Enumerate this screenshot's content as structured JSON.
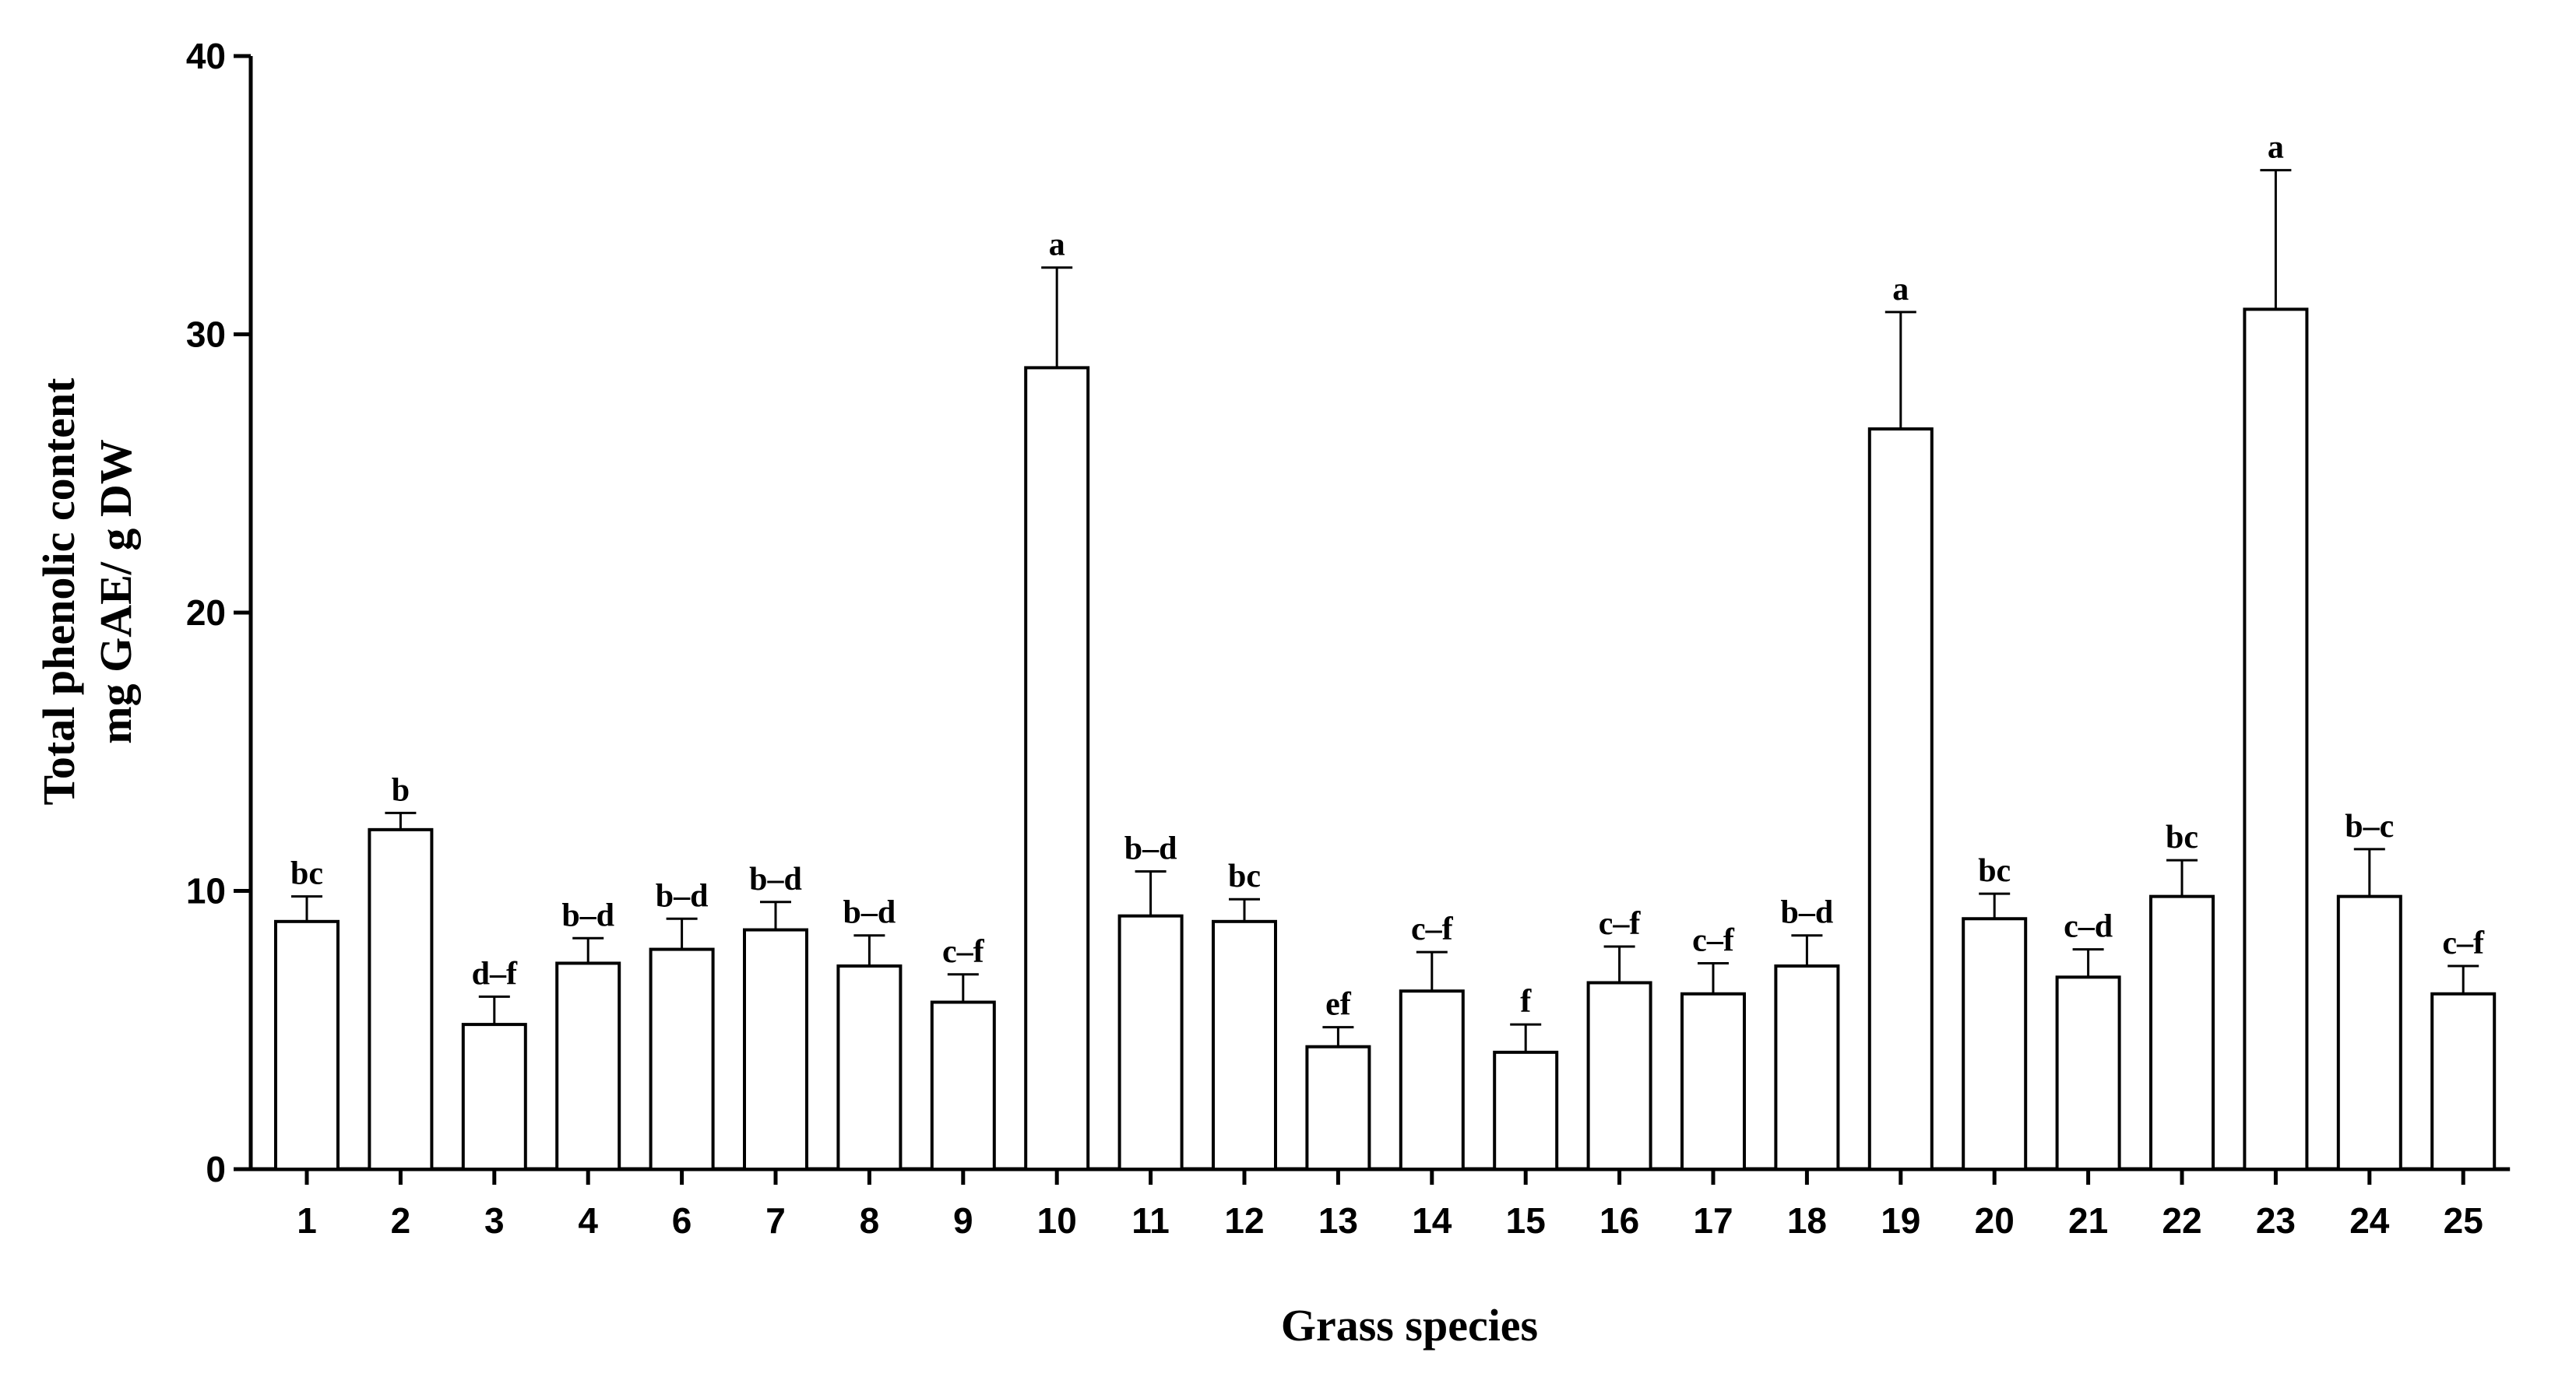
{
  "chart_data": {
    "type": "bar",
    "title": "",
    "xlabel": "Grass species",
    "ylabel_line1": "Total phenolic content",
    "ylabel_line2": "mg GAE/ g DW",
    "ylim": [
      0,
      40
    ],
    "yticks": [
      "0",
      "10",
      "20",
      "30",
      "40"
    ],
    "ytick_values": [
      0,
      10,
      20,
      30,
      40
    ],
    "categories": [
      "1",
      "2",
      "3",
      "4",
      "6",
      "7",
      "8",
      "9",
      "10",
      "11",
      "12",
      "13",
      "14",
      "15",
      "16",
      "17",
      "18",
      "19",
      "20",
      "21",
      "22",
      "23",
      "24",
      "25"
    ],
    "values": [
      8.9,
      12.2,
      5.2,
      7.4,
      7.9,
      8.6,
      7.3,
      6.0,
      28.8,
      9.1,
      8.9,
      4.4,
      6.4,
      4.2,
      6.7,
      6.3,
      7.3,
      26.6,
      9.0,
      6.9,
      9.8,
      30.9,
      9.8,
      6.3
    ],
    "errors": [
      0.9,
      0.6,
      1.0,
      0.9,
      1.1,
      1.0,
      1.1,
      1.0,
      3.6,
      1.6,
      0.8,
      0.7,
      1.4,
      1.0,
      1.3,
      1.1,
      1.1,
      4.2,
      0.9,
      1.0,
      1.3,
      5.0,
      1.7,
      1.0
    ],
    "significance": [
      "bc",
      "b",
      "d–f",
      "b–d",
      "b–d",
      "b–d",
      "b–d",
      "c–f",
      "a",
      "b–d",
      "bc",
      "ef",
      "c–f",
      "f",
      "c–f",
      "c–f",
      "b–d",
      "a",
      "bc",
      "c–d",
      "bc",
      "a",
      "b–c",
      "c–f"
    ],
    "bar_fill": "#ffffff",
    "bar_stroke": "#000000",
    "grid": false
  }
}
